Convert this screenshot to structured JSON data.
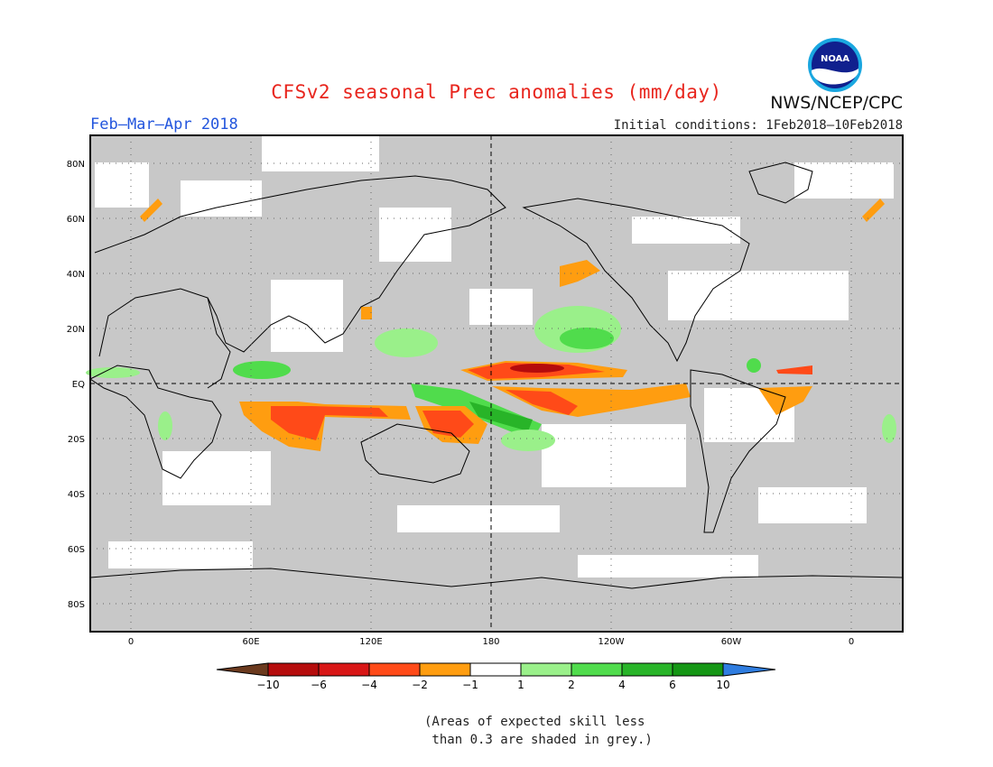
{
  "header": {
    "title": "CFSv2 seasonal Prec anomalies (mm/day)",
    "org": "NWS/NCEP/CPC",
    "logo_text": "NOAA",
    "season": "Feb–Mar–Apr 2018",
    "initial_conditions": "Initial conditions: 1Feb2018–10Feb2018"
  },
  "map": {
    "type": "global precipitation anomaly map",
    "lon_labels": [
      "0",
      "60E",
      "120E",
      "180",
      "120W",
      "60W",
      "0"
    ],
    "lat_labels": [
      "80N",
      "60N",
      "40N",
      "20N",
      "EQ",
      "20S",
      "40S",
      "60S",
      "80S"
    ],
    "background_color": "#c8c8c8",
    "colors": {
      "skill_mask_grey": "#c8c8c8",
      "land_outline": "#000000"
    }
  },
  "colorbar": {
    "labels": [
      "-10",
      "-6",
      "-4",
      "-2",
      "-1",
      "1",
      "2",
      "4",
      "6",
      "10"
    ],
    "colors": [
      "#6b3a1e",
      "#b50c0c",
      "#d81616",
      "#ff4a18",
      "#ff9d10",
      "#ffffff",
      "#9af08a",
      "#50dc4c",
      "#28b428",
      "#149614",
      "#2f7de0"
    ]
  },
  "note": {
    "line1": "(Areas of expected skill less",
    "line2": " than 0.3 are shaded in grey.)"
  }
}
